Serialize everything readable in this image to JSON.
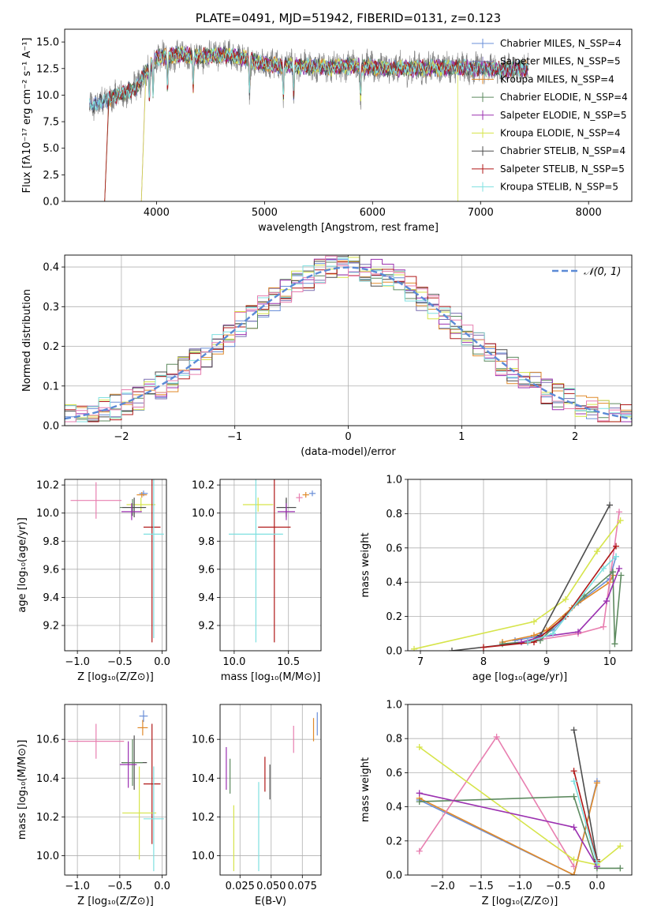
{
  "chart_data": [
    {
      "id": "spectrum",
      "type": "line",
      "title": "PLATE=0491, MJD=51942, FIBERID=0131, z=0.123",
      "xlabel": "wavelength [Angstrom, rest frame]",
      "ylabel": "Flux [fλ10⁻¹⁷ erg cm⁻² s⁻¹ A⁻¹]",
      "xlim": [
        3150,
        8400
      ],
      "ylim": [
        0,
        16.2
      ],
      "xticks": [
        4000,
        5000,
        6000,
        7000,
        8000
      ],
      "yticks": [
        0.0,
        2.5,
        5.0,
        7.5,
        10.0,
        12.5,
        15.0
      ],
      "legend_position": "right",
      "grid": false,
      "series": [
        {
          "name": "Chabrier MILES, N_SSP=4",
          "color": "#6a8fd8"
        },
        {
          "name": "Salpeter MILES, N_SSP=5",
          "color": "#7a6fb0"
        },
        {
          "name": "Kroupa MILES, N_SSP=4",
          "color": "#e08a2a"
        },
        {
          "name": "Chabrier ELODIE, N_SSP=4",
          "color": "#5d8a5f"
        },
        {
          "name": "Salpeter ELODIE, N_SSP=5",
          "color": "#9b30b0"
        },
        {
          "name": "Kroupa ELODIE, N_SSP=4",
          "color": "#d6e44a"
        },
        {
          "name": "Chabrier STELIB, N_SSP=4",
          "color": "#4d4d4d"
        },
        {
          "name": "Salpeter STELIB, N_SSP=5",
          "color": "#b01818"
        },
        {
          "name": "Kroupa STELIB, N_SSP=5",
          "color": "#7fe0e0"
        }
      ],
      "observed_color": "#7f7f7f",
      "continuum": {
        "x": [
          3400,
          3600,
          3800,
          4000,
          4200,
          4400,
          4600,
          4800,
          5000,
          5200,
          5400,
          5600,
          5800,
          6000,
          6200,
          6400,
          6600,
          6800,
          7000,
          7200,
          7400
        ],
        "y": [
          9.0,
          9.8,
          10.6,
          13.5,
          13.8,
          13.6,
          13.8,
          13.5,
          12.9,
          12.8,
          12.7,
          12.6,
          12.8,
          12.6,
          12.5,
          12.5,
          12.6,
          12.6,
          12.5,
          12.4,
          12.5
        ]
      }
    },
    {
      "id": "residuals",
      "type": "histogram",
      "xlabel": "(data-model)/error",
      "ylabel": "Normed distribution",
      "xlim": [
        -2.5,
        2.5
      ],
      "ylim": [
        0,
        0.43
      ],
      "xticks": [
        -2,
        -1,
        0,
        1,
        2
      ],
      "yticks": [
        0.0,
        0.1,
        0.2,
        0.3,
        0.4
      ],
      "grid": true,
      "legend_position": "top-right",
      "reference_curve": {
        "name": "𝒩(0, 1)",
        "color": "#5b8ad6"
      },
      "bin_width": 0.1
    },
    {
      "id": "age_vs_Z",
      "type": "scatter",
      "xlabel": "Z [log₁₀(Z/Z⊙)]",
      "ylabel": "age  [log₁₀(age/yr)]",
      "xlim": [
        -1.15,
        0.05
      ],
      "ylim": [
        9.02,
        10.24
      ],
      "xticks": [
        -1.0,
        -0.5,
        0.0
      ],
      "yticks": [
        9.2,
        9.4,
        9.6,
        9.8,
        10.0,
        10.2
      ],
      "grid": true,
      "points": [
        {
          "x": -0.22,
          "y": 10.14,
          "xerr": 0.05,
          "yerr": 0.02,
          "color": "#6a8fd8"
        },
        {
          "x": -0.24,
          "y": 10.13,
          "xerr": 0.06,
          "yerr": 0.02,
          "color": "#e08a2a"
        },
        {
          "x": -0.78,
          "y": 10.09,
          "xerr": 0.3,
          "yerr": 0.13,
          "color": "#e87fb0"
        },
        {
          "x": -0.25,
          "y": 10.06,
          "xerr": 0.17,
          "yerr": 0.05,
          "color": "#d6e44a"
        },
        {
          "x": -0.35,
          "y": 10.04,
          "xerr": 0.15,
          "yerr": 0.06,
          "color": "#5d8a5f"
        },
        {
          "x": -0.33,
          "y": 10.04,
          "xerr": 0.14,
          "yerr": 0.07,
          "color": "#4d4d4d"
        },
        {
          "x": -0.36,
          "y": 10.01,
          "xerr": 0.12,
          "yerr": 0.06,
          "color": "#9b30b0"
        },
        {
          "x": -0.12,
          "y": 9.9,
          "xerr": 0.1,
          "yerr": 0.82,
          "color": "#b01818"
        },
        {
          "x": -0.1,
          "y": 9.85,
          "xerr": 0.12,
          "yerr": 0.74,
          "color": "#7fe0e0"
        }
      ]
    },
    {
      "id": "age_vs_mass",
      "type": "scatter",
      "xlabel": "mass [log₁₀(M/M⊙)]",
      "ylabel": "",
      "xlim": [
        9.87,
        10.8
      ],
      "ylim": [
        9.02,
        10.24
      ],
      "xticks": [
        10.0,
        10.5
      ],
      "yticks": [
        9.2,
        9.4,
        9.6,
        9.8,
        10.0,
        10.2
      ],
      "grid": true,
      "points": [
        {
          "x": 10.72,
          "y": 10.14,
          "xerr": 0.03,
          "yerr": 0.02,
          "color": "#6a8fd8"
        },
        {
          "x": 10.66,
          "y": 10.13,
          "xerr": 0.03,
          "yerr": 0.02,
          "color": "#e08a2a"
        },
        {
          "x": 10.6,
          "y": 10.11,
          "xerr": 0.03,
          "yerr": 0.03,
          "color": "#e87fb0"
        },
        {
          "x": 10.22,
          "y": 10.06,
          "xerr": 0.14,
          "yerr": 0.05,
          "color": "#d6e44a"
        },
        {
          "x": 10.48,
          "y": 10.04,
          "xerr": 0.09,
          "yerr": 0.06,
          "color": "#5d8a5f"
        },
        {
          "x": 10.48,
          "y": 10.04,
          "xerr": 0.09,
          "yerr": 0.07,
          "color": "#4d4d4d"
        },
        {
          "x": 10.48,
          "y": 10.01,
          "xerr": 0.08,
          "yerr": 0.06,
          "color": "#9b30b0"
        },
        {
          "x": 10.37,
          "y": 9.9,
          "xerr": 0.15,
          "yerr": 0.82,
          "color": "#b01818"
        },
        {
          "x": 10.2,
          "y": 9.85,
          "xerr": 0.25,
          "yerr": 0.77,
          "color": "#7fe0e0"
        }
      ]
    },
    {
      "id": "weight_vs_age",
      "type": "line",
      "xlabel": "age  [log₁₀(age/yr)]",
      "ylabel": "mass weight",
      "xlim": [
        6.8,
        10.35
      ],
      "ylim": [
        0,
        1.0
      ],
      "xticks": [
        7,
        8,
        9,
        10
      ],
      "yticks": [
        0.0,
        0.2,
        0.4,
        0.6,
        0.8,
        1.0
      ],
      "grid": true,
      "series": [
        {
          "color": "#6a8fd8",
          "points": [
            [
              8.5,
              0.06
            ],
            [
              8.8,
              0.08
            ],
            [
              9.1,
              0.12
            ],
            [
              9.5,
              0.28
            ],
            [
              10.0,
              0.42
            ],
            [
              10.1,
              0.55
            ]
          ]
        },
        {
          "color": "#e08a2a",
          "points": [
            [
              8.3,
              0.05
            ],
            [
              8.8,
              0.09
            ],
            [
              9.0,
              0.12
            ],
            [
              9.4,
              0.25
            ],
            [
              10.0,
              0.4
            ],
            [
              10.05,
              0.44
            ]
          ]
        },
        {
          "color": "#e87fb0",
          "points": [
            [
              8.8,
              0.06
            ],
            [
              9.5,
              0.1
            ],
            [
              9.9,
              0.14
            ],
            [
              10.15,
              0.81
            ]
          ]
        },
        {
          "color": "#d6e44a",
          "points": [
            [
              6.9,
              0.01
            ],
            [
              8.8,
              0.17
            ],
            [
              9.3,
              0.3
            ],
            [
              9.8,
              0.58
            ],
            [
              10.17,
              0.76
            ]
          ]
        },
        {
          "color": "#5d8a5f",
          "points": [
            [
              8.3,
              0.04
            ],
            [
              8.9,
              0.06
            ],
            [
              9.6,
              0.32
            ],
            [
              10.05,
              0.46
            ],
            [
              10.08,
              0.04
            ],
            [
              10.18,
              0.44
            ]
          ]
        },
        {
          "color": "#4d4d4d",
          "points": [
            [
              7.5,
              0.0
            ],
            [
              8.7,
              0.05
            ],
            [
              8.9,
              0.09
            ],
            [
              10.0,
              0.85
            ]
          ]
        },
        {
          "color": "#9b30b0",
          "points": [
            [
              8.6,
              0.05
            ],
            [
              8.9,
              0.08
            ],
            [
              9.5,
              0.11
            ],
            [
              9.95,
              0.29
            ],
            [
              10.15,
              0.48
            ]
          ]
        },
        {
          "color": "#b01818",
          "points": [
            [
              8.0,
              0.02
            ],
            [
              8.8,
              0.05
            ],
            [
              9.3,
              0.2
            ],
            [
              10.1,
              0.61
            ]
          ]
        },
        {
          "color": "#7fe0e0",
          "points": [
            [
              8.7,
              0.05
            ],
            [
              9.1,
              0.1
            ],
            [
              9.9,
              0.48
            ],
            [
              10.1,
              0.55
            ]
          ]
        }
      ]
    },
    {
      "id": "mass_vs_Z",
      "type": "scatter",
      "xlabel": "Z [log₁₀(Z/Z⊙)]",
      "ylabel": "mass [log₁₀(M/M⊙)]",
      "xlim": [
        -1.15,
        0.05
      ],
      "ylim": [
        9.9,
        10.78
      ],
      "xticks": [
        -1.0,
        -0.5,
        0.0
      ],
      "yticks": [
        10.0,
        10.2,
        10.4,
        10.6
      ],
      "grid": true,
      "points": [
        {
          "x": -0.22,
          "y": 10.72,
          "xerr": 0.05,
          "yerr": 0.03,
          "color": "#6a8fd8"
        },
        {
          "x": -0.23,
          "y": 10.66,
          "xerr": 0.06,
          "yerr": 0.04,
          "color": "#e08a2a"
        },
        {
          "x": -0.78,
          "y": 10.59,
          "xerr": 0.33,
          "yerr": 0.09,
          "color": "#e87fb0"
        },
        {
          "x": -0.33,
          "y": 10.48,
          "xerr": 0.15,
          "yerr": 0.14,
          "color": "#4d4d4d"
        },
        {
          "x": -0.35,
          "y": 10.48,
          "xerr": 0.12,
          "yerr": 0.12,
          "color": "#5d8a5f"
        },
        {
          "x": -0.4,
          "y": 10.47,
          "xerr": 0.1,
          "yerr": 0.12,
          "color": "#9b30b0"
        },
        {
          "x": -0.12,
          "y": 10.37,
          "xerr": 0.1,
          "yerr": 0.31,
          "color": "#b01818"
        },
        {
          "x": -0.27,
          "y": 10.22,
          "xerr": 0.2,
          "yerr": 0.24,
          "color": "#d6e44a"
        },
        {
          "x": -0.1,
          "y": 10.19,
          "xerr": 0.12,
          "yerr": 0.27,
          "color": "#7fe0e0"
        }
      ]
    },
    {
      "id": "mass_vs_ebv",
      "type": "scatter",
      "xlabel": "E(B-V)",
      "ylabel": "",
      "xlim": [
        0.009,
        0.09
      ],
      "ylim": [
        9.9,
        10.78
      ],
      "xticks": [
        0.025,
        0.05,
        0.075
      ],
      "xtick_labels": [
        "0.025",
        "0.050",
        "0.075"
      ],
      "yticks": [
        10.0,
        10.2,
        10.4,
        10.6
      ],
      "grid": true,
      "points": [
        {
          "x": 0.087,
          "y": 10.68,
          "yerr": 0.06,
          "color": "#6a8fd8"
        },
        {
          "x": 0.084,
          "y": 10.65,
          "yerr": 0.06,
          "color": "#e08a2a"
        },
        {
          "x": 0.068,
          "y": 10.6,
          "yerr": 0.07,
          "color": "#e87fb0"
        },
        {
          "x": 0.045,
          "y": 10.42,
          "yerr": 0.09,
          "color": "#b01818"
        },
        {
          "x": 0.014,
          "y": 10.45,
          "yerr": 0.11,
          "color": "#9b30b0"
        },
        {
          "x": 0.017,
          "y": 10.41,
          "yerr": 0.09,
          "color": "#5d8a5f"
        },
        {
          "x": 0.049,
          "y": 10.38,
          "yerr": 0.09,
          "color": "#4d4d4d"
        },
        {
          "x": 0.02,
          "y": 10.09,
          "yerr": 0.17,
          "color": "#d6e44a"
        },
        {
          "x": 0.04,
          "y": 10.15,
          "yerr": 0.23,
          "color": "#7fe0e0"
        }
      ]
    },
    {
      "id": "weight_vs_Z",
      "type": "line",
      "xlabel": "Z [log₁₀(Z/Z⊙)]",
      "ylabel": "mass weight",
      "xlim": [
        -2.45,
        0.45
      ],
      "ylim": [
        0,
        1.0
      ],
      "xticks": [
        -2.0,
        -1.5,
        -1.0,
        -0.5,
        0.0
      ],
      "yticks": [
        0.0,
        0.2,
        0.4,
        0.6,
        0.8,
        1.0
      ],
      "grid": true,
      "series": [
        {
          "color": "#6a8fd8",
          "points": [
            [
              -2.3,
              0.44
            ],
            [
              -0.3,
              0.0
            ],
            [
              0.0,
              0.55
            ]
          ]
        },
        {
          "color": "#e08a2a",
          "points": [
            [
              -2.3,
              0.45
            ],
            [
              -0.3,
              0.0
            ],
            [
              0.0,
              0.54
            ]
          ]
        },
        {
          "color": "#e87fb0",
          "points": [
            [
              -2.3,
              0.14
            ],
            [
              -1.3,
              0.81
            ],
            [
              -0.3,
              0.05
            ]
          ]
        },
        {
          "color": "#d6e44a",
          "points": [
            [
              -2.3,
              0.75
            ],
            [
              -0.3,
              0.09
            ],
            [
              0.0,
              0.06
            ],
            [
              0.3,
              0.17
            ]
          ]
        },
        {
          "color": "#5d8a5f",
          "points": [
            [
              -2.3,
              0.43
            ],
            [
              -0.3,
              0.46
            ],
            [
              0.0,
              0.04
            ],
            [
              0.3,
              0.04
            ]
          ]
        },
        {
          "color": "#4d4d4d",
          "points": [
            [
              -0.3,
              0.85
            ],
            [
              0.0,
              0.09
            ]
          ]
        },
        {
          "color": "#9b30b0",
          "points": [
            [
              -2.3,
              0.48
            ],
            [
              -0.3,
              0.28
            ],
            [
              0.0,
              0.05
            ]
          ]
        },
        {
          "color": "#b01818",
          "points": [
            [
              -0.3,
              0.61
            ],
            [
              0.0,
              0.08
            ]
          ]
        },
        {
          "color": "#7fe0e0",
          "points": [
            [
              -0.3,
              0.55
            ],
            [
              0.0,
              0.07
            ]
          ]
        }
      ]
    }
  ]
}
